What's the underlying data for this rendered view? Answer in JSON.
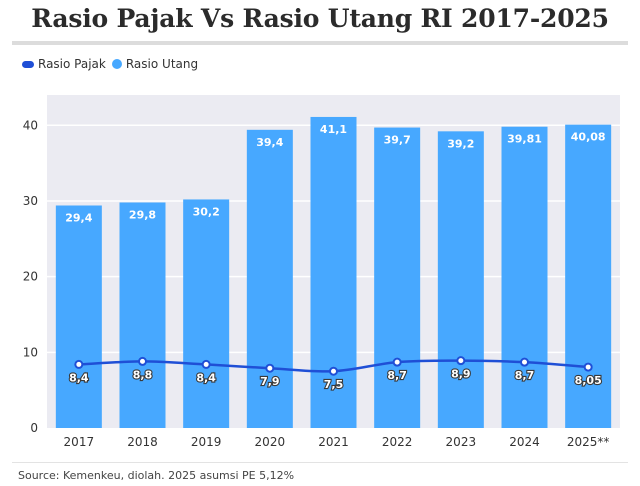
{
  "colors": {
    "bar": "#47a8ff",
    "line": "#1f4fd6",
    "plot_bg": "#ebebf2",
    "grid": "#ffffff"
  },
  "chart_data": {
    "type": "bar",
    "title": "Rasio Pajak Vs Rasio Utang RI 2017-2025",
    "categories": [
      "2017",
      "2018",
      "2019",
      "2020",
      "2021",
      "2022",
      "2023",
      "2024",
      "2025**"
    ],
    "series": [
      {
        "name": "Rasio Pajak",
        "type": "line",
        "values": [
          8.4,
          8.8,
          8.4,
          7.9,
          7.5,
          8.7,
          8.9,
          8.7,
          8.05
        ],
        "labels": [
          "8,4",
          "8,8",
          "8,4",
          "7,9",
          "7,5",
          "8,7",
          "8,9",
          "8,7",
          "8,05"
        ]
      },
      {
        "name": "Rasio Utang",
        "type": "bar",
        "values": [
          29.4,
          29.8,
          30.2,
          39.4,
          41.1,
          39.7,
          39.2,
          39.81,
          40.08
        ],
        "labels": [
          "29,4",
          "29,8",
          "30,2",
          "39,4",
          "41,1",
          "39,7",
          "39,2",
          "39,81",
          "40,08"
        ]
      }
    ],
    "yticks": [
      "0",
      "10",
      "20",
      "30",
      "40"
    ],
    "ylim": [
      0,
      44
    ],
    "grid": true,
    "legend": "top-left",
    "source": "Source: Kemenkeu, diolah. 2025 asumsi PE 5,12%"
  }
}
